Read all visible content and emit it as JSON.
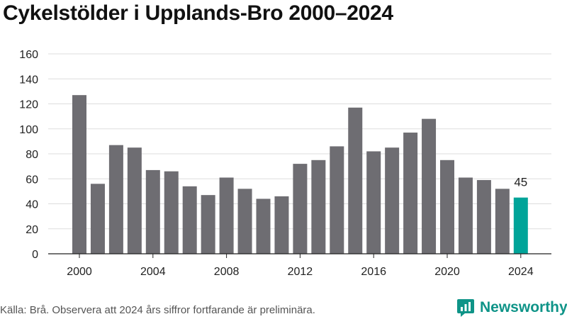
{
  "title": "Cykelstölder i Upplands-Bro 2000–2024",
  "source": "Källa: Brå. Observera att 2024 års siffror fortfarande är preliminära.",
  "brand": {
    "name": "Newsworthy",
    "icon": "bar-chart-logo-icon"
  },
  "colors": {
    "bar": "#6e6d72",
    "highlight": "#00a499",
    "grid": "#dddddd",
    "axis": "#222222",
    "brand": "#0f9488"
  },
  "chart_data": {
    "type": "bar",
    "title": "Cykelstölder i Upplands-Bro 2000–2024",
    "xlabel": "",
    "ylabel": "",
    "categories": [
      2000,
      2001,
      2002,
      2003,
      2004,
      2005,
      2006,
      2007,
      2008,
      2009,
      2010,
      2011,
      2012,
      2013,
      2014,
      2015,
      2016,
      2017,
      2018,
      2019,
      2020,
      2021,
      2022,
      2023,
      2024
    ],
    "values": [
      127,
      56,
      87,
      85,
      67,
      66,
      54,
      47,
      61,
      52,
      44,
      46,
      72,
      75,
      86,
      117,
      82,
      85,
      97,
      108,
      75,
      61,
      59,
      52,
      45
    ],
    "x_ticks": [
      "2000",
      "2004",
      "2008",
      "2012",
      "2016",
      "2020",
      "2024"
    ],
    "y_ticks": [
      0,
      20,
      40,
      60,
      80,
      100,
      120,
      140,
      160
    ],
    "ylim": [
      0,
      160
    ],
    "grid": true,
    "highlight": {
      "category": 2024,
      "label": "45"
    }
  }
}
